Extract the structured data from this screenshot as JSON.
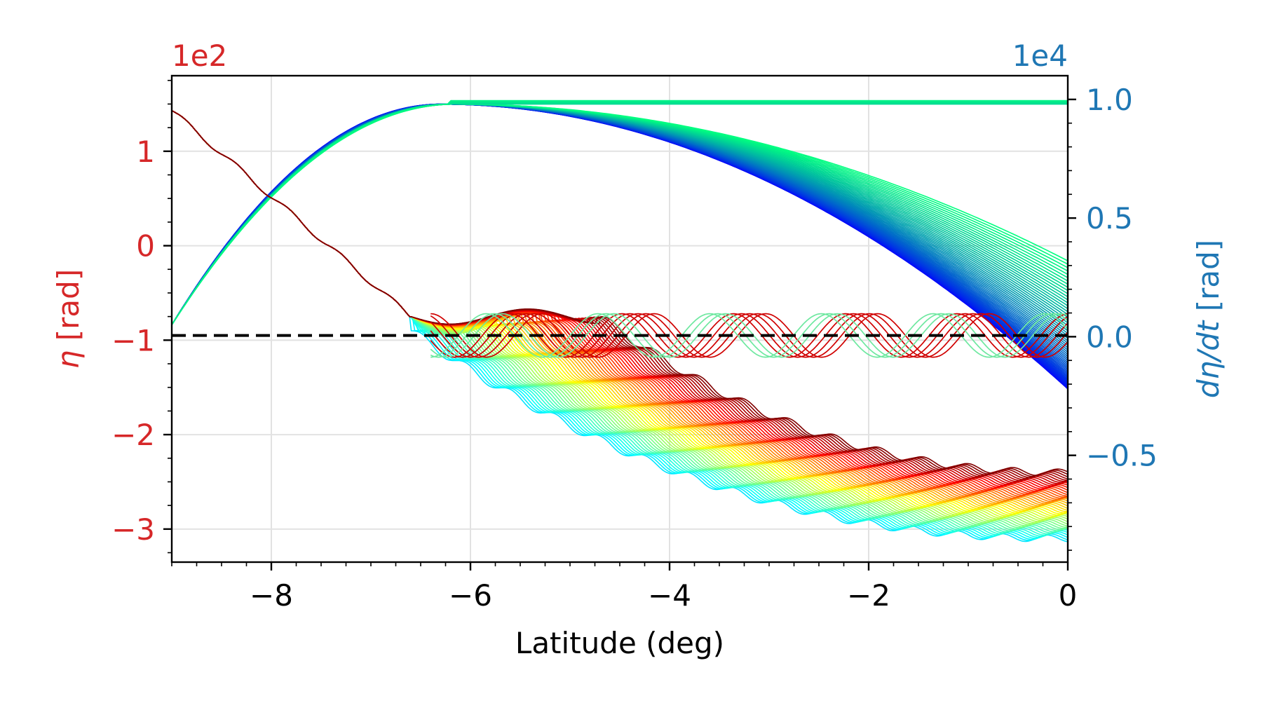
{
  "chart_data": {
    "type": "line",
    "title": "",
    "xlabel": "Latitude (deg)",
    "xlim": [
      -9,
      0
    ],
    "x_ticks": [
      -8,
      -6,
      -4,
      -2,
      0
    ],
    "x_tick_labels": [
      "−8",
      "−6",
      "−4",
      "−2",
      "0"
    ],
    "grid": true,
    "left_axis": {
      "label_symbol": "η",
      "label_unit": " [rad]",
      "multiplier": "1e2",
      "color": "#d62728",
      "ylim": [
        -3.35,
        1.8
      ],
      "ticks": [
        -3,
        -2,
        -1,
        0,
        1
      ],
      "tick_labels": [
        "−3",
        "−2",
        "−1",
        "0",
        "1"
      ]
    },
    "right_axis": {
      "label_symbol": "dη/dt",
      "label_unit": " [rad]",
      "multiplier": "1e4",
      "color": "#1f77b4",
      "ylim": [
        -0.95,
        1.1
      ],
      "ticks": [
        -0.5,
        0,
        0.5,
        1.0
      ],
      "tick_labels": [
        "−0.5",
        "0.0",
        "0.5",
        "1.0"
      ]
    },
    "reference_line": {
      "y_left": -0.95,
      "style": "dashed",
      "color": "#000000"
    },
    "series_groups": [
      {
        "axis": "left",
        "description": "eta trajectories decaying after capture",
        "count": 60,
        "colormap": "jet",
        "x_start": -9,
        "y_start": 1.43,
        "y_end_range": [
          -3.1,
          -2.4
        ]
      },
      {
        "axis": "left",
        "description": "eta trajectories oscillating about the dashed level",
        "count": 8,
        "colormap": "red/green",
        "oscillation_range": [
          -1.18,
          -0.72
        ]
      },
      {
        "axis": "right",
        "description": "d eta/dt trajectories",
        "count": 60,
        "colormap": "winter",
        "peak": 0.98,
        "y_end_range": [
          -0.22,
          0.32
        ],
        "flat_level": 0.98
      }
    ]
  }
}
